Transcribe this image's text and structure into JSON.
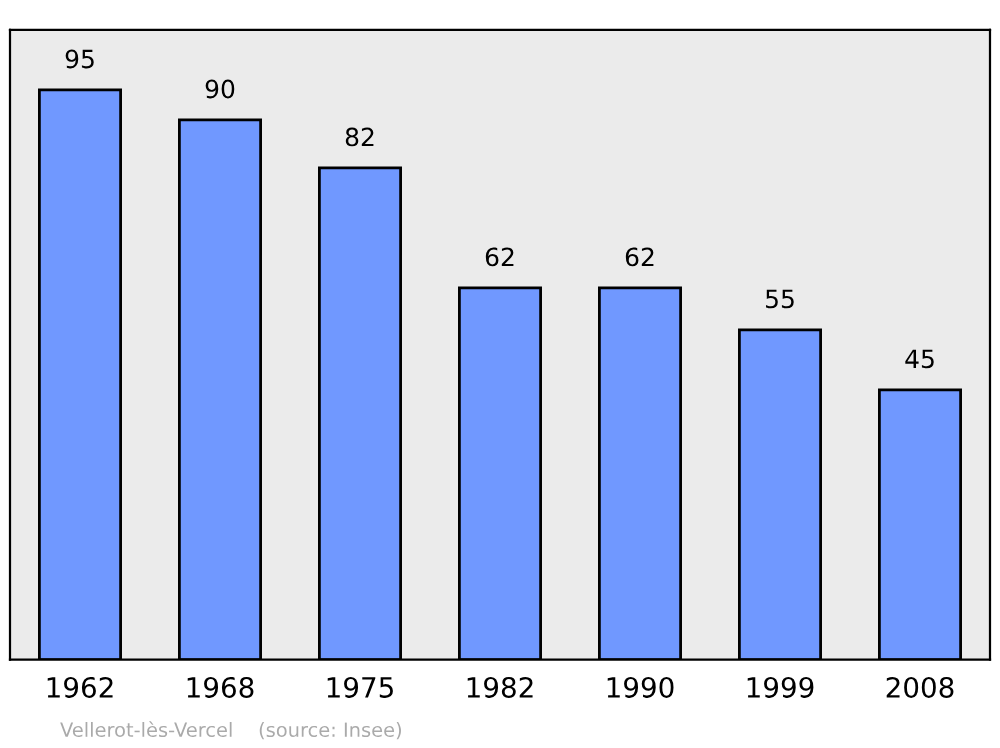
{
  "chart_data": {
    "type": "bar",
    "categories": [
      "1962",
      "1968",
      "1975",
      "1982",
      "1990",
      "1999",
      "2008"
    ],
    "values": [
      95,
      90,
      82,
      62,
      62,
      55,
      45
    ],
    "color": "#7098ff",
    "ylim": [
      0,
      105
    ],
    "data_labels": true,
    "tick_labels": "x",
    "grid": false,
    "legend": false,
    "annotations": [
      "Vellerot-lès-Vercel    (source: Insee)"
    ]
  }
}
